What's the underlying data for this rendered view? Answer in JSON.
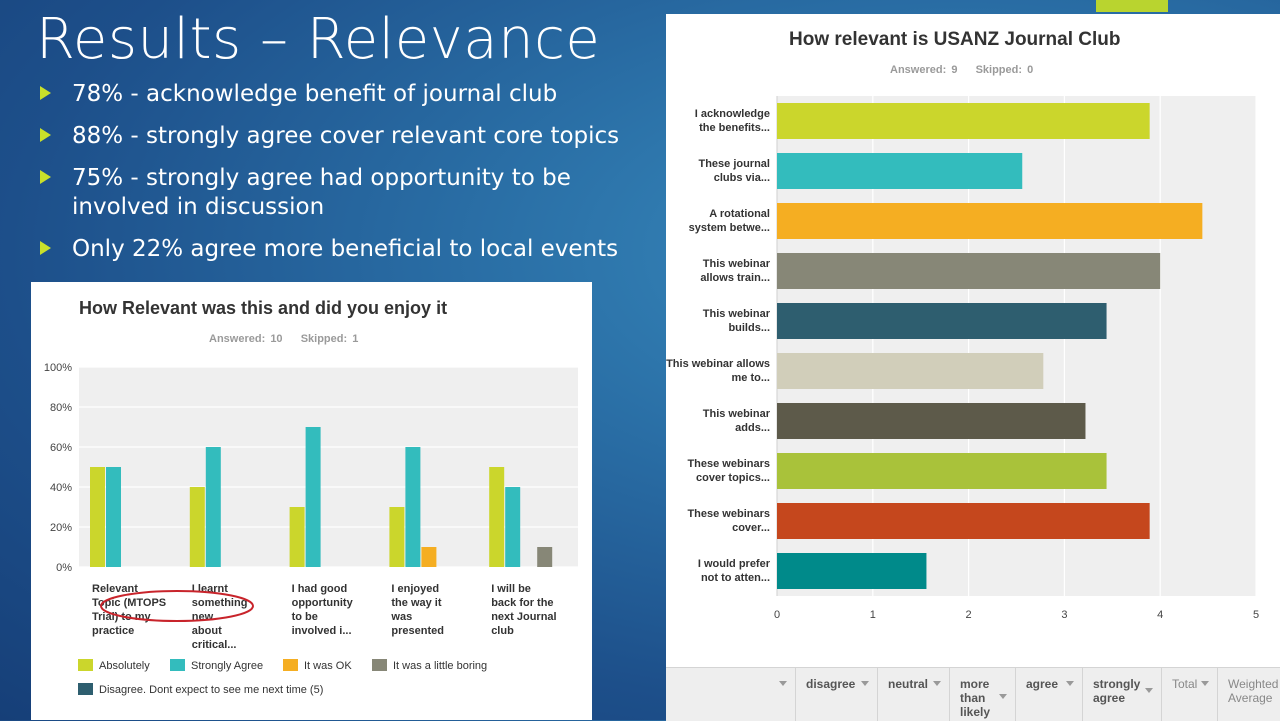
{
  "slide": {
    "title": "Results – Relevance",
    "bullets": [
      "78% - acknowledge benefit of journal club",
      "88% - strongly agree cover relevant core topics",
      "75% - strongly agree had opportunity to be involved in discussion",
      "Only 22% agree more beneficial to local events"
    ]
  },
  "colors": {
    "accent": "#b9d42f",
    "bullet_arrow": "#c9e02a"
  },
  "right_table_header": {
    "columns": [
      "",
      "disagree",
      "neutral",
      "more than likely",
      "agree",
      "strongly agree",
      "Total",
      "Weighted Average"
    ]
  },
  "chart_data": [
    {
      "type": "bar",
      "orientation": "horizontal",
      "title": "How relevant is USANZ Journal Club",
      "answered_label": "Answered:",
      "answered": "9",
      "skipped_label": "Skipped:",
      "skipped": "0",
      "categories": [
        "I acknowledge the benefits...",
        "These journal clubs via...",
        "A rotational system betwe...",
        "This webinar allows train...",
        "This webinar builds...",
        "This webinar allows me to...",
        "This webinar adds...",
        "These webinars cover topics...",
        "These webinars cover...",
        "I would prefer not to atten..."
      ],
      "values": [
        3.89,
        2.56,
        4.44,
        4.0,
        3.44,
        2.78,
        3.22,
        3.44,
        3.89,
        1.56
      ],
      "bar_colors": [
        "#cbd62c",
        "#33bcbd",
        "#f5ae22",
        "#878777",
        "#2e5e6f",
        "#d1ceba",
        "#5d5a4a",
        "#a9c23a",
        "#c5471d",
        "#008a8a"
      ],
      "xlim": [
        0,
        5
      ],
      "xticks": [
        "0",
        "1",
        "2",
        "3",
        "4",
        "5"
      ],
      "grid": true
    },
    {
      "type": "bar",
      "title": "How Relevant was this and did you enjoy it",
      "answered_label": "Answered:",
      "answered": "10",
      "skipped_label": "Skipped:",
      "skipped": "1",
      "categories": [
        [
          "Relevant",
          "Topic (MTOPS",
          "Trial) to my",
          "practice"
        ],
        [
          "I learnt",
          "something",
          "new",
          "about",
          "critical..."
        ],
        [
          "I had good",
          "opportunity",
          "to be",
          "involved i..."
        ],
        [
          "I enjoyed",
          "the way it",
          "was",
          "presented"
        ],
        [
          "I will be",
          "back for the",
          "next Journal",
          "club"
        ]
      ],
      "series": [
        {
          "name": "Absolutely",
          "color": "#cbd62c",
          "values": [
            50,
            40,
            30,
            30,
            50
          ]
        },
        {
          "name": "Strongly Agree",
          "color": "#33bcbd",
          "values": [
            50,
            60,
            70,
            60,
            40
          ]
        },
        {
          "name": "It was OK",
          "color": "#f5ae22",
          "values": [
            0,
            0,
            0,
            10,
            0
          ]
        },
        {
          "name": "It was a little boring",
          "color": "#878777",
          "values": [
            0,
            0,
            0,
            0,
            10
          ]
        },
        {
          "name": "Disagree. Dont expect to see me next time (5)",
          "color": "#2e5e6f",
          "values": [
            0,
            0,
            0,
            0,
            0
          ]
        }
      ],
      "ylim": [
        0,
        100
      ],
      "yticks": [
        "0%",
        "20%",
        "40%",
        "60%",
        "80%",
        "100%"
      ],
      "grid": true,
      "legend_position": "bottom",
      "annotation": "red ellipse highlighting the first category label"
    }
  ]
}
